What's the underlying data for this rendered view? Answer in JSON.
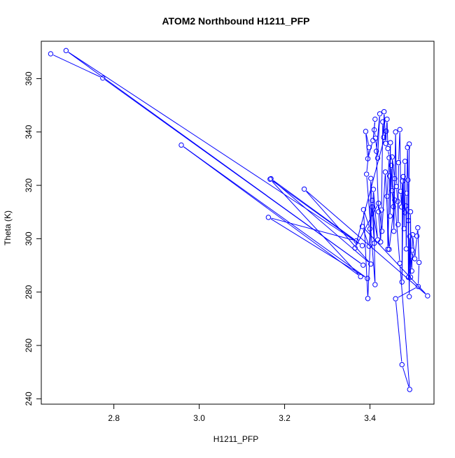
{
  "chart_data": {
    "type": "line",
    "title": "ATOM2 Northbound H1211_PFP",
    "xlabel": "H1211_PFP",
    "ylabel": "Theta (K)",
    "xlim": [
      2.63,
      3.55
    ],
    "ylim": [
      238,
      374
    ],
    "x_ticks": [
      2.8,
      3.0,
      3.2,
      3.4
    ],
    "x_tick_labels": [
      "2.8",
      "3.0",
      "3.2",
      "3.4"
    ],
    "y_ticks": [
      240,
      260,
      280,
      300,
      320,
      340,
      360
    ],
    "y_tick_labels": [
      "240",
      "260",
      "280",
      "300",
      "320",
      "340",
      "360"
    ],
    "grid": false,
    "legend": "none",
    "line_style": "points connected by line segments with gaps",
    "marker": "open circle",
    "color": "#0000ff",
    "series": [
      {
        "points": [
          [
            2.652,
            369.3
          ],
          [
            2.774,
            360.2
          ],
          [
            3.384,
            290.1
          ],
          [
            2.688,
            370.5
          ],
          [
            3.382,
            297.4
          ],
          [
            3.166,
            322.3
          ],
          [
            3.378,
            285.8
          ],
          [
            2.958,
            335.1
          ],
          [
            3.394,
            285.1
          ],
          [
            3.162,
            308.0
          ],
          [
            3.368,
            299.2
          ],
          [
            3.168,
            322.5
          ],
          [
            3.402,
            290.5
          ],
          [
            3.246,
            318.6
          ],
          [
            3.535,
            278.6
          ],
          [
            3.382,
            304.6
          ],
          [
            3.398,
            297.2
          ],
          [
            3.405,
            314.4
          ],
          [
            3.395,
            277.6
          ],
          [
            3.385,
            310.9
          ],
          [
            3.4,
            303.7
          ],
          [
            3.402,
            322.6
          ],
          [
            3.41,
            298.3
          ],
          [
            3.405,
            311.9
          ],
          [
            3.418,
            299.6
          ],
          [
            3.408,
            318.5
          ],
          [
            3.412,
            282.8
          ],
          [
            3.392,
            324.2
          ],
          [
            3.398,
            334.2
          ],
          [
            3.39,
            340.2
          ],
          [
            3.395,
            330.0
          ],
          [
            3.407,
            336.8
          ],
          [
            3.412,
            344.8
          ],
          [
            3.41,
            340.8
          ],
          [
            3.413,
            337.7
          ],
          [
            3.418,
            330.2
          ],
          [
            3.423,
            346.8
          ],
          [
            3.415,
            332.8
          ],
          [
            3.42,
            310.1
          ],
          [
            3.425,
            298.8
          ],
          [
            3.427,
            310.8
          ],
          [
            3.43,
            343.8
          ],
          [
            3.432,
            338.0
          ],
          [
            3.433,
            347.6
          ],
          [
            3.437,
            335.7
          ],
          [
            3.44,
            344.8
          ],
          [
            3.442,
            333.8
          ],
          [
            3.445,
            330.3
          ],
          [
            3.44,
            315.9
          ],
          [
            3.442,
            296.1
          ],
          [
            3.446,
            323.5
          ],
          [
            3.448,
            336.0
          ],
          [
            3.447,
            308.5
          ],
          [
            3.45,
            327.5
          ],
          [
            3.452,
            318.0
          ],
          [
            3.455,
            312.0
          ],
          [
            3.458,
            322.5
          ],
          [
            3.452,
            330.6
          ],
          [
            3.456,
            302.8
          ],
          [
            3.46,
            340.0
          ],
          [
            3.462,
            319.6
          ],
          [
            3.465,
            314.0
          ],
          [
            3.466,
            305.3
          ],
          [
            3.467,
            328.5
          ],
          [
            3.47,
            340.9
          ],
          [
            3.472,
            317.8
          ],
          [
            3.474,
            311.9
          ],
          [
            3.476,
            321.6
          ],
          [
            3.475,
            283.8
          ],
          [
            3.478,
            323.3
          ],
          [
            3.48,
            303.8
          ],
          [
            3.482,
            329.0
          ],
          [
            3.482,
            309.8
          ],
          [
            3.484,
            312.3
          ],
          [
            3.485,
            296.2
          ],
          [
            3.486,
            317.1
          ],
          [
            3.488,
            334.2
          ],
          [
            3.489,
            322.0
          ],
          [
            3.49,
            285.5
          ],
          [
            3.492,
            335.5
          ],
          [
            3.49,
            306.8
          ],
          [
            3.492,
            278.3
          ],
          [
            3.493,
            300.9
          ],
          [
            3.495,
            285.6
          ],
          [
            3.495,
            310.1
          ],
          [
            3.496,
            293.5
          ],
          [
            3.498,
            287.9
          ],
          [
            3.499,
            295.7
          ],
          [
            3.5,
            301.5
          ],
          [
            3.505,
            292.5
          ],
          [
            3.51,
            301.0
          ],
          [
            3.512,
            304.1
          ],
          [
            3.515,
            291.1
          ],
          [
            3.513,
            282.1
          ],
          [
            3.46,
            277.5
          ],
          [
            3.475,
            252.8
          ],
          [
            3.493,
            243.5
          ],
          [
            3.47,
            290.8
          ],
          [
            3.458,
            314.5
          ],
          [
            3.445,
            296.0
          ],
          [
            3.436,
            325.0
          ],
          [
            3.428,
            302.8
          ],
          [
            3.42,
            313.3
          ],
          [
            3.365,
            296.5
          ],
          [
            3.438,
            340.3
          ]
        ]
      }
    ]
  }
}
